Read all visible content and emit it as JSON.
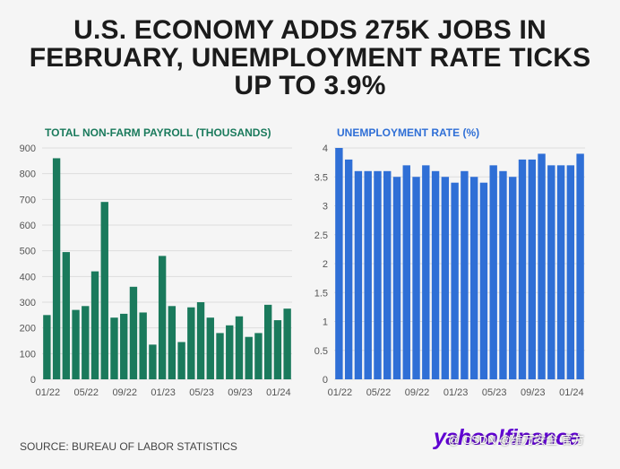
{
  "headline": "U.S. ECONOMY ADDS 275K JOBS IN FEBRUARY, UNEMPLOYMENT RATE TICKS UP TO 3.9%",
  "source": "SOURCE: BUREAU OF LABOR STATISTICS",
  "logo_text": "yahoo!finance",
  "watermark_text": "@ CSDN @维万安全 官方",
  "colors": {
    "payroll": "#1a7a5c",
    "unemployment": "#2f6fd6",
    "grid": "#dddddd",
    "background": "#f5f5f5"
  },
  "chart_data": [
    {
      "type": "bar",
      "title": "TOTAL NON-FARM PAYROLL (THOUSANDS)",
      "xlabel": "",
      "ylabel": "",
      "ylim": [
        0,
        900
      ],
      "yticks": [
        0,
        100,
        200,
        300,
        400,
        500,
        600,
        700,
        800,
        900
      ],
      "xticks": [
        "01/22",
        "05/22",
        "09/22",
        "01/23",
        "05/23",
        "09/23",
        "01/24"
      ],
      "grid": true,
      "values": [
        250,
        860,
        495,
        270,
        285,
        420,
        690,
        240,
        255,
        360,
        260,
        135,
        480,
        285,
        145,
        280,
        300,
        240,
        180,
        210,
        245,
        165,
        180,
        290,
        230,
        275
      ]
    },
    {
      "type": "bar",
      "title": "UNEMPLOYMENT RATE (%)",
      "xlabel": "",
      "ylabel": "",
      "ylim": [
        0,
        4
      ],
      "yticks": [
        0,
        0.5,
        1,
        1.5,
        2,
        2.5,
        3,
        3.5,
        4
      ],
      "xticks": [
        "01/22",
        "05/22",
        "09/22",
        "01/23",
        "05/23",
        "09/23",
        "01/24"
      ],
      "grid": true,
      "values": [
        4.0,
        3.8,
        3.6,
        3.6,
        3.6,
        3.6,
        3.5,
        3.7,
        3.5,
        3.7,
        3.6,
        3.5,
        3.4,
        3.6,
        3.5,
        3.4,
        3.7,
        3.6,
        3.5,
        3.8,
        3.8,
        3.9,
        3.7,
        3.7,
        3.7,
        3.9
      ]
    }
  ]
}
